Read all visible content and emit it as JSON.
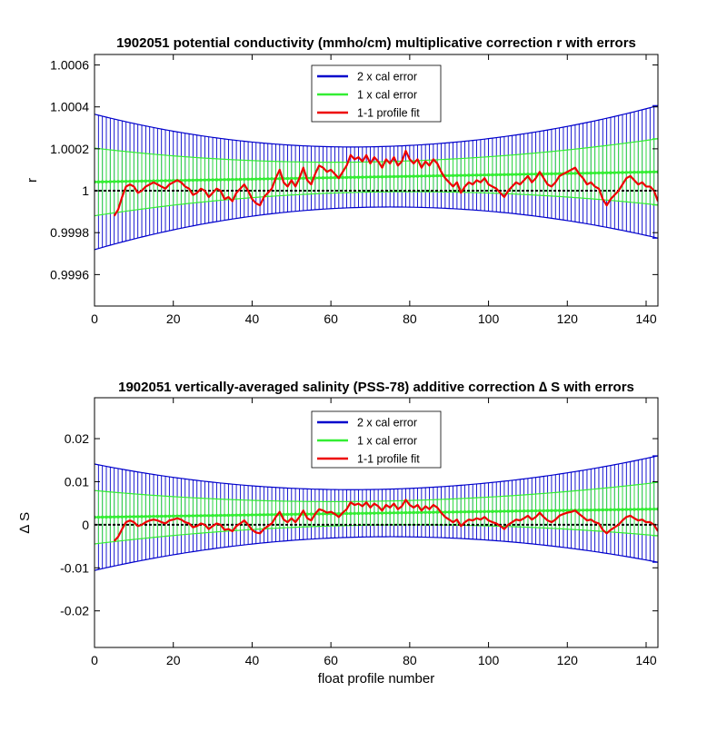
{
  "chart_data": [
    {
      "type": "line",
      "title": "1902051 potential conductivity (mmho/cm) multiplicative correction r with errors",
      "xlabel": "",
      "ylabel": "r",
      "xlim": [
        0,
        143
      ],
      "ylim": [
        0.99945,
        1.00065
      ],
      "xticks": [
        0,
        20,
        40,
        60,
        80,
        100,
        120,
        140
      ],
      "yticks": [
        0.9996,
        0.9998,
        1,
        1.0002,
        1.0004,
        1.0006
      ],
      "ytick_labels": [
        "0.9996",
        "0.9998",
        "1",
        "1.0002",
        "1.0004",
        "1.0006"
      ],
      "grid": false,
      "legend_position": "top-center",
      "reference_line": 1,
      "fit": {
        "x0": 0,
        "x1": 143,
        "y0": 1.000042,
        "y1": 1.00009
      },
      "series": [
        {
          "name": "2 x cal error",
          "color": "#0000cc",
          "half_width_ends": [
            0.000323,
            0.000316
          ],
          "half_width_min": 0.000144,
          "x_at_min": 70
        },
        {
          "name": "1 x cal error",
          "color": "#33ee33",
          "half_width_ends": [
            0.0001615,
            0.000158
          ],
          "half_width_min": 7.2e-05,
          "x_at_min": 70
        },
        {
          "name": "1-1 profile fit",
          "color": "#ee0000",
          "x": [
            5,
            6,
            7,
            8,
            9,
            10,
            11,
            12,
            13,
            14,
            15,
            16,
            17,
            18,
            19,
            20,
            21,
            22,
            23,
            24,
            25,
            26,
            27,
            28,
            29,
            30,
            31,
            32,
            33,
            34,
            35,
            36,
            37,
            38,
            39,
            40,
            41,
            42,
            43,
            44,
            45,
            46,
            47,
            48,
            49,
            50,
            51,
            52,
            53,
            54,
            55,
            56,
            57,
            58,
            59,
            60,
            61,
            62,
            63,
            64,
            65,
            66,
            67,
            68,
            69,
            70,
            71,
            72,
            73,
            74,
            75,
            76,
            77,
            78,
            79,
            80,
            81,
            82,
            83,
            84,
            85,
            86,
            87,
            88,
            89,
            90,
            91,
            92,
            93,
            94,
            95,
            96,
            97,
            98,
            99,
            100,
            101,
            102,
            103,
            104,
            105,
            106,
            107,
            108,
            109,
            110,
            111,
            112,
            113,
            114,
            115,
            116,
            117,
            118,
            119,
            120,
            121,
            122,
            123,
            124,
            125,
            126,
            127,
            128,
            129,
            130,
            131,
            132,
            133,
            134,
            135,
            136,
            137,
            138,
            139,
            140,
            141,
            142,
            143
          ],
          "values": [
            0.99988,
            0.99991,
            0.99997,
            1.00002,
            1.00003,
            1.00002,
            0.99999,
            1.0,
            1.00002,
            1.00003,
            1.00004,
            1.00003,
            1.00002,
            1.00001,
            1.00003,
            1.00004,
            1.00005,
            1.00004,
            1.00002,
            1.00001,
            0.99998,
            0.99999,
            1.00001,
            1.0,
            0.99997,
            0.99999,
            1.00001,
            1.0,
            0.99996,
            0.99997,
            0.99995,
            0.99999,
            1.00001,
            1.00003,
            1.0,
            0.99996,
            0.99994,
            0.99993,
            0.99997,
            0.99999,
            1.00001,
            1.00006,
            1.0001,
            1.00004,
            1.00002,
            1.00005,
            1.00002,
            1.00006,
            1.00011,
            1.00005,
            1.00003,
            1.00008,
            1.00012,
            1.00011,
            1.00009,
            1.0001,
            1.00008,
            1.00006,
            1.00009,
            1.00012,
            1.00017,
            1.00015,
            1.00016,
            1.00014,
            1.00017,
            1.00013,
            1.00016,
            1.00014,
            1.00011,
            1.00015,
            1.00013,
            1.00016,
            1.00012,
            1.00014,
            1.00019,
            1.00015,
            1.00013,
            1.00015,
            1.00011,
            1.00014,
            1.00012,
            1.00015,
            1.00013,
            1.00009,
            1.00006,
            1.00004,
            1.00002,
            1.00004,
            0.99999,
            1.00002,
            1.00004,
            1.00003,
            1.00005,
            1.00004,
            1.00006,
            1.00003,
            1.00002,
            1.00001,
            0.99999,
            0.99997,
            1.0,
            1.00002,
            1.00004,
            1.00003,
            1.00005,
            1.00007,
            1.00004,
            1.00006,
            1.00009,
            1.00006,
            1.00003,
            1.00002,
            1.00004,
            1.00007,
            1.00008,
            1.00009,
            1.0001,
            1.00011,
            1.00008,
            1.00006,
            1.00003,
            1.00004,
            1.00002,
            1.00001,
            0.99996,
            0.99993,
            0.99996,
            0.99998,
            1.0,
            1.00003,
            1.00006,
            1.00007,
            1.00005,
            1.00003,
            1.00004,
            1.00002,
            1.00002,
            1.0,
            0.99995
          ]
        }
      ]
    },
    {
      "type": "line",
      "title": "1902051 vertically-averaged salinity (PSS-78) additive correction ∆ S with errors",
      "xlabel": "float profile number",
      "ylabel": "∆ S",
      "xlim": [
        0,
        143
      ],
      "ylim": [
        -0.0285,
        0.0295
      ],
      "xticks": [
        0,
        20,
        40,
        60,
        80,
        100,
        120,
        140
      ],
      "yticks": [
        -0.02,
        -0.01,
        0,
        0.01,
        0.02
      ],
      "ytick_labels": [
        "-0.02",
        "-0.01",
        "0",
        "0.01",
        "0.02"
      ],
      "grid": false,
      "legend_position": "top-center",
      "reference_line": 0,
      "fit": {
        "x0": 0,
        "x1": 143,
        "y0": 0.00175,
        "y1": 0.00365
      },
      "series": [
        {
          "name": "2 x cal error",
          "color": "#0000cc",
          "half_width_ends": [
            0.01235,
            0.01235
          ],
          "half_width_min": 0.0055,
          "x_at_min": 70
        },
        {
          "name": "1 x cal error",
          "color": "#33ee33",
          "half_width_ends": [
            0.0062,
            0.0062
          ],
          "half_width_min": 0.00276,
          "x_at_min": 70
        },
        {
          "name": "1-1 profile fit",
          "color": "#ee0000",
          "x": [
            5,
            6,
            7,
            8,
            9,
            10,
            11,
            12,
            13,
            14,
            15,
            16,
            17,
            18,
            19,
            20,
            21,
            22,
            23,
            24,
            25,
            26,
            27,
            28,
            29,
            30,
            31,
            32,
            33,
            34,
            35,
            36,
            37,
            38,
            39,
            40,
            41,
            42,
            43,
            44,
            45,
            46,
            47,
            48,
            49,
            50,
            51,
            52,
            53,
            54,
            55,
            56,
            57,
            58,
            59,
            60,
            61,
            62,
            63,
            64,
            65,
            66,
            67,
            68,
            69,
            70,
            71,
            72,
            73,
            74,
            75,
            76,
            77,
            78,
            79,
            80,
            81,
            82,
            83,
            84,
            85,
            86,
            87,
            88,
            89,
            90,
            91,
            92,
            93,
            94,
            95,
            96,
            97,
            98,
            99,
            100,
            101,
            102,
            103,
            104,
            105,
            106,
            107,
            108,
            109,
            110,
            111,
            112,
            113,
            114,
            115,
            116,
            117,
            118,
            119,
            120,
            121,
            122,
            123,
            124,
            125,
            126,
            127,
            128,
            129,
            130,
            131,
            132,
            133,
            134,
            135,
            136,
            137,
            138,
            139,
            140,
            141,
            142,
            143
          ],
          "values": [
            -0.0038,
            -0.0028,
            -0.001,
            0.0006,
            0.001,
            0.0006,
            -0.0003,
            0.0,
            0.0006,
            0.001,
            0.0012,
            0.001,
            0.0006,
            0.0003,
            0.001,
            0.0012,
            0.0015,
            0.0012,
            0.0006,
            0.0003,
            -0.0006,
            -0.0003,
            0.0003,
            0.0,
            -0.001,
            -0.0003,
            0.0003,
            0.0,
            -0.0012,
            -0.001,
            -0.0015,
            -0.0003,
            0.0003,
            0.001,
            0.0,
            -0.0012,
            -0.0018,
            -0.002,
            -0.001,
            -0.0003,
            0.0003,
            0.0018,
            0.003,
            0.0012,
            0.0006,
            0.0015,
            0.0006,
            0.0018,
            0.0033,
            0.0015,
            0.001,
            0.0025,
            0.0036,
            0.0033,
            0.0028,
            0.003,
            0.0025,
            0.0018,
            0.0028,
            0.0036,
            0.0052,
            0.0046,
            0.0049,
            0.0043,
            0.0052,
            0.004,
            0.0049,
            0.0043,
            0.0033,
            0.0046,
            0.004,
            0.0049,
            0.0036,
            0.0043,
            0.0058,
            0.0046,
            0.004,
            0.0046,
            0.0033,
            0.0043,
            0.0036,
            0.0046,
            0.004,
            0.0028,
            0.0018,
            0.0012,
            0.0006,
            0.0012,
            -0.0003,
            0.0006,
            0.0012,
            0.001,
            0.0015,
            0.0012,
            0.0018,
            0.001,
            0.0006,
            0.0003,
            -0.0003,
            -0.001,
            0.0,
            0.0006,
            0.0012,
            0.001,
            0.0015,
            0.0021,
            0.0012,
            0.0018,
            0.0028,
            0.0018,
            0.001,
            0.0006,
            0.0012,
            0.0021,
            0.0025,
            0.0028,
            0.003,
            0.0033,
            0.0025,
            0.0018,
            0.001,
            0.0012,
            0.0006,
            0.0003,
            -0.0012,
            -0.002,
            -0.0012,
            -0.0006,
            0.0,
            0.001,
            0.0018,
            0.0021,
            0.0015,
            0.001,
            0.0012,
            0.0006,
            0.0006,
            0.0,
            -0.0015
          ]
        }
      ]
    }
  ]
}
